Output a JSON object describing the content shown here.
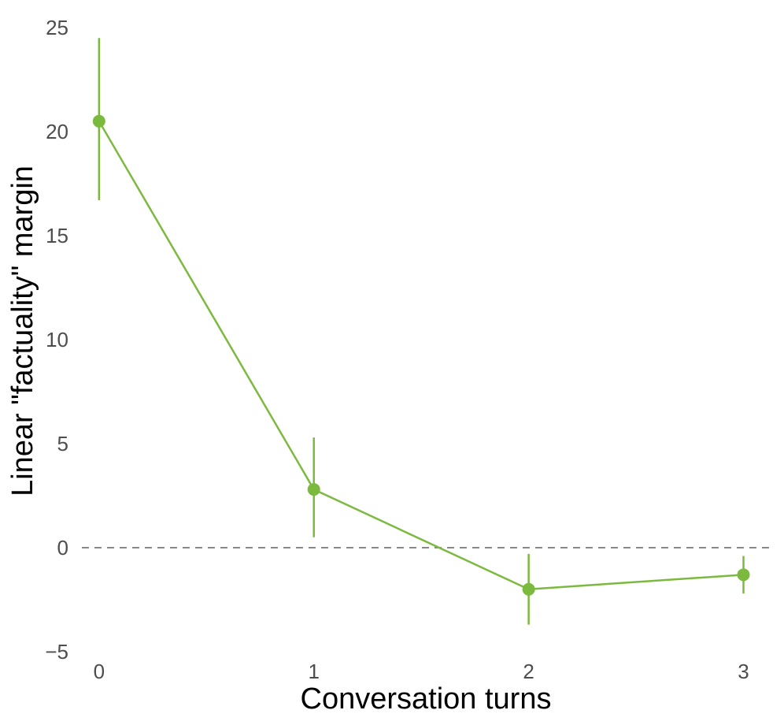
{
  "chart_data": {
    "type": "line",
    "title": "",
    "xlabel": "Conversation turns",
    "ylabel": "Linear \"factuality\" margin",
    "x": [
      0,
      1,
      2,
      3
    ],
    "x_ticks": [
      "0",
      "1",
      "2",
      "3"
    ],
    "y_ticks": [
      "25",
      "20",
      "15",
      "10",
      "5",
      "0",
      "−5"
    ],
    "y_tick_values": [
      25,
      20,
      15,
      10,
      5,
      0,
      -5
    ],
    "xlim": [
      -0.08,
      3.13
    ],
    "ylim": [
      -5,
      25
    ],
    "series": [
      {
        "values": [
          20.5,
          2.8,
          -2.0,
          -1.3
        ],
        "error_low": [
          16.7,
          0.5,
          -3.7,
          -2.2
        ],
        "error_high": [
          24.5,
          5.3,
          -0.3,
          -0.4
        ],
        "color": "#7cba3f"
      }
    ],
    "reference_line": {
      "y": 0,
      "style": "dashed",
      "color": "#888888"
    },
    "grid": false,
    "legend": "none"
  }
}
